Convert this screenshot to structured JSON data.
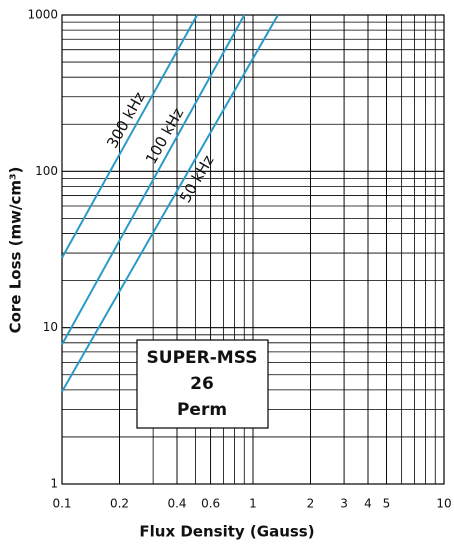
{
  "chart_data": {
    "type": "line",
    "x_label": "Flux Density (Gauss)",
    "y_label": "Core Loss (mw/cm³)",
    "log_x": true,
    "log_y": true,
    "grid": true,
    "minor_grid": true,
    "xlim": [
      0.1,
      10
    ],
    "ylim": [
      1,
      1000
    ],
    "xticks": [
      0.1,
      0.2,
      0.4,
      0.6,
      1,
      2,
      3,
      4,
      5,
      10
    ],
    "yticks": [
      1,
      10,
      100,
      1000
    ],
    "series": [
      {
        "name": "300 kHz",
        "color": "#2a9bc9",
        "x": [
          0.1,
          0.51
        ],
        "values": [
          28,
          1000
        ]
      },
      {
        "name": "100 kHz",
        "color": "#2a9bc9",
        "x": [
          0.1,
          0.9
        ],
        "values": [
          7.8,
          1000
        ]
      },
      {
        "name": "50 kHz",
        "color": "#2a9bc9",
        "x": [
          0.1,
          1.35
        ],
        "values": [
          3.9,
          1000
        ]
      }
    ],
    "box_lines": [
      "SUPER-MSS",
      "26",
      "Perm"
    ]
  }
}
